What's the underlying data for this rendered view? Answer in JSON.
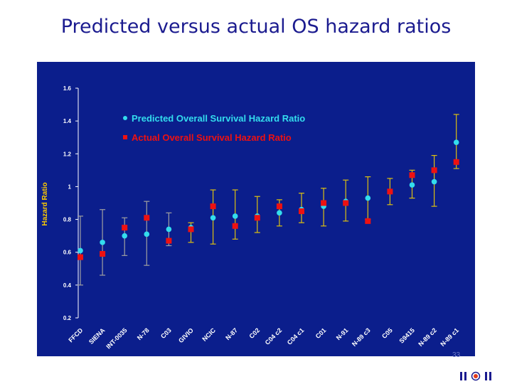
{
  "slide": {
    "title": "Predicted versus actual OS hazard ratios",
    "page_number": "33"
  },
  "colors": {
    "panel_bg": "#0b1e8c",
    "axis_text": "#ffffff",
    "ylabel": "#ffcc00",
    "predicted": "#33ddee",
    "actual": "#ee1111",
    "error_bar_predicted": "#ddc010",
    "error_bar_actual": "#a0a0a0"
  },
  "chart_data": {
    "type": "scatter",
    "title": "",
    "xlabel": "",
    "ylabel": "Hazard Ratio",
    "ylim": [
      0.2,
      1.6
    ],
    "yticks": [
      "0.2",
      "0.4",
      "0.6",
      "0.8",
      "1",
      "1.2",
      "1.4",
      "1.6"
    ],
    "categories": [
      "FFCD",
      "SIENA",
      "INT-0035",
      "N-78",
      "C03",
      "GIVIO",
      "NCIC",
      "N-87",
      "C02",
      "C04 c2",
      "C04 c1",
      "C01",
      "N-91",
      "N-89 c3",
      "C05",
      "S9415",
      "N-89 c2",
      "N-89 c1"
    ],
    "series": [
      {
        "name": "Predicted Overall Survival Hazard Ratio",
        "marker": "circle",
        "values": [
          0.61,
          0.66,
          0.7,
          0.71,
          0.74,
          0.75,
          0.81,
          0.82,
          0.82,
          0.84,
          0.86,
          0.88,
          0.91,
          0.93,
          0.97,
          1.01,
          1.03,
          1.27
        ],
        "lower": [
          null,
          null,
          null,
          null,
          null,
          0.66,
          0.65,
          0.68,
          0.72,
          0.76,
          0.78,
          0.76,
          0.79,
          0.8,
          0.89,
          0.93,
          0.88,
          1.11
        ],
        "upper": [
          null,
          null,
          null,
          null,
          null,
          0.78,
          0.98,
          0.98,
          0.94,
          0.92,
          0.96,
          0.99,
          1.04,
          1.06,
          1.05,
          1.1,
          1.19,
          1.44
        ]
      },
      {
        "name": "Actual Overall Survival Hazard Ratio",
        "marker": "square",
        "values": [
          0.57,
          0.59,
          0.75,
          0.81,
          0.67,
          0.74,
          0.88,
          0.76,
          0.81,
          0.88,
          0.85,
          0.9,
          0.9,
          0.79,
          0.97,
          1.07,
          1.1,
          1.15
        ],
        "lower": [
          0.4,
          0.46,
          0.58,
          0.52,
          0.64,
          null,
          null,
          null,
          null,
          null,
          null,
          null,
          null,
          null,
          null,
          null,
          null,
          null
        ],
        "upper": [
          0.82,
          0.86,
          0.81,
          0.91,
          0.84,
          null,
          null,
          null,
          null,
          null,
          null,
          null,
          null,
          null,
          null,
          null,
          null,
          null
        ]
      }
    ],
    "legend_placement": "top-center",
    "grid": false
  }
}
